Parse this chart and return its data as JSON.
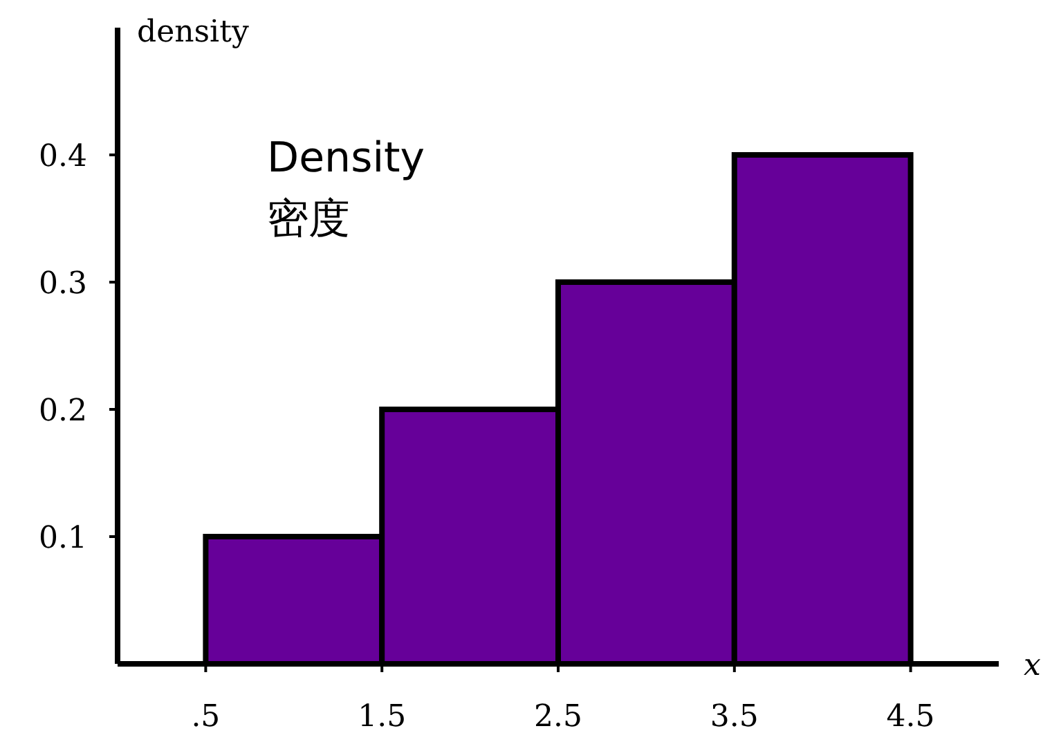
{
  "chart_data": {
    "type": "histogram",
    "xlabel": "x",
    "ylabel": "density",
    "annotations": [
      "Density",
      "密度"
    ],
    "bins": [
      0.5,
      1.5,
      2.5,
      3.5,
      4.5
    ],
    "values": [
      0.1,
      0.2,
      0.3,
      0.4
    ],
    "color": "#660099",
    "xlim": [
      0,
      5
    ],
    "ylim": [
      0,
      0.5
    ],
    "xticks": [
      {
        "value": 0.5,
        "label": ".5"
      },
      1.5,
      2.5,
      3.5,
      4.5
    ],
    "yticks": [
      0.1,
      0.2,
      0.3,
      0.4
    ]
  }
}
